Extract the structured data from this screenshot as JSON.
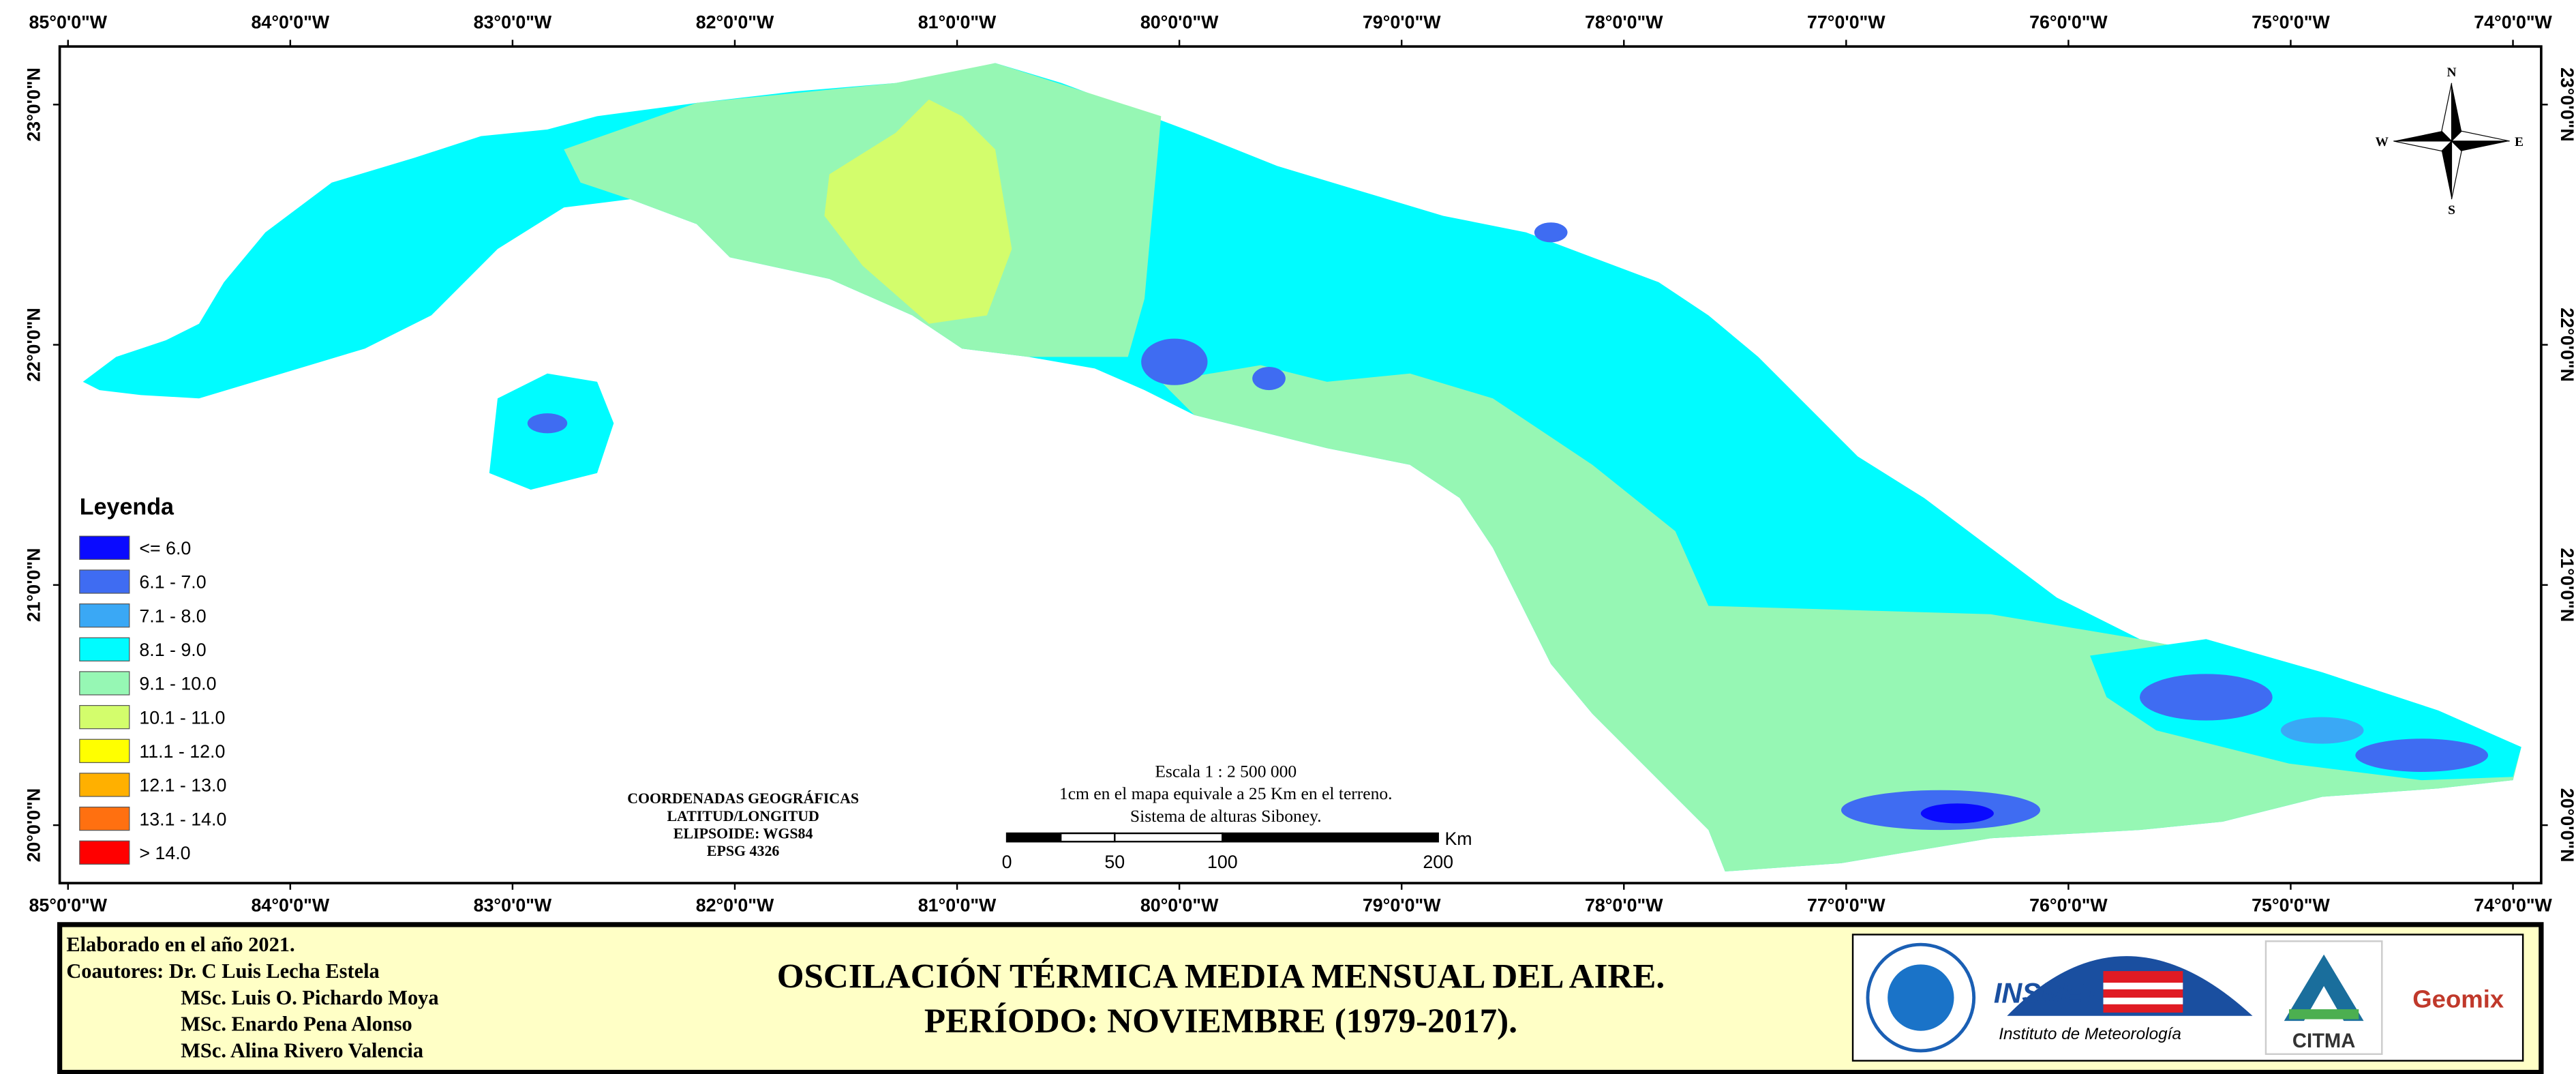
{
  "map": {
    "lon_labels": [
      "85°0'0\"W",
      "84°0'0\"W",
      "83°0'0\"W",
      "82°0'0\"W",
      "81°0'0\"W",
      "80°0'0\"W",
      "79°0'0\"W",
      "78°0'0\"W",
      "77°0'0\"W",
      "76°0'0\"W",
      "75°0'0\"W",
      "74°0'0\"W"
    ],
    "lat_labels": [
      "23°0'0\"N",
      "22°0'0\"N",
      "21°0'0\"N",
      "20°0'0\"N"
    ]
  },
  "legend": {
    "title": "Leyenda",
    "items": [
      {
        "label": "<= 6.0",
        "color": "#0a0aff"
      },
      {
        "label": "6.1 - 7.0",
        "color": "#3f6cf2"
      },
      {
        "label": "7.1 - 8.0",
        "color": "#3aa8f5"
      },
      {
        "label": "8.1 - 9.0",
        "color": "#00fcff"
      },
      {
        "label": "9.1 - 10.0",
        "color": "#96f7b4"
      },
      {
        "label": "10.1 - 11.0",
        "color": "#d3fd6c"
      },
      {
        "label": "11.1 - 12.0",
        "color": "#ffff00"
      },
      {
        "label": "12.1 - 13.0",
        "color": "#ffb000"
      },
      {
        "label": "13.1 - 14.0",
        "color": "#ff7010"
      },
      {
        "label": "> 14.0",
        "color": "#ff0000"
      }
    ]
  },
  "scale": {
    "lines": [
      "Escala 1 : 2 500 000",
      "1cm en el mapa equivale a 25 Km en el terreno.",
      "Sistema de alturas Siboney."
    ],
    "ticks": [
      0,
      50,
      100,
      200
    ],
    "unit": "Km"
  },
  "coordinates": [
    "COORDENADAS GEOGRÁFICAS",
    "LATITUD/LONGITUD",
    "ELIPSOIDE: WGS84",
    "EPSG 4326"
  ],
  "compass": {
    "n": "N",
    "s": "S",
    "e": "E",
    "w": "W"
  },
  "footer": {
    "credits": [
      "Elaborado en el año 2021.",
      "Coautores: Dr. C Luis Lecha Estela",
      "MSc. Luis O. Pichardo Moya",
      "MSc. Enardo Pena Alonso",
      "MSc. Alina Rivero Valencia"
    ],
    "title": [
      "OSCILACIÓN TÉRMICA MEDIA MENSUAL DEL AIRE.",
      "PERÍODO: NOVIEMBRE (1979-2017)."
    ],
    "logos": {
      "insmet": "INSMET",
      "insmet_sub": "Instituto de Meteorología",
      "citma": "CITMA",
      "geomix": "Geomix"
    }
  }
}
